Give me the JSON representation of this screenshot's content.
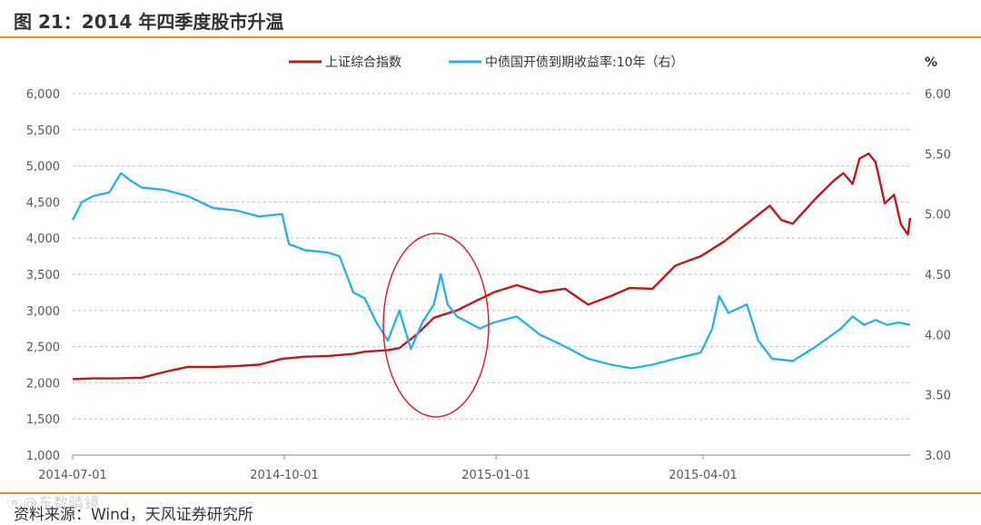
{
  "figure": {
    "title": "图 21：2014 年四季度股市升温",
    "source": "资料来源：Wind，天风证券研究所",
    "watermark": "ⓦ@东数晴镜"
  },
  "colors": {
    "accent": "#E5892E",
    "series_red": "#C0161C",
    "series_blue": "#29B3E4",
    "circle": "#D9232A",
    "grid": "#BFBFBF"
  },
  "chart_data": {
    "type": "line",
    "left_unit": "",
    "right_unit": "%",
    "x_ticks": [
      "2014-07-01",
      "2014-10-01",
      "2015-01-01",
      "2015-04-01"
    ],
    "x_range": [
      "2014-07-01",
      "2015-06-30"
    ],
    "y_left": {
      "min": 1000,
      "max": 6000,
      "ticks": [
        "1,000",
        "1,500",
        "2,000",
        "2,500",
        "3,000",
        "3,500",
        "4,000",
        "4,500",
        "5,000",
        "5,500",
        "6,000"
      ]
    },
    "y_right": {
      "min": 3.0,
      "max": 6.0,
      "ticks": [
        "3.00",
        "3.50",
        "4.00",
        "4.50",
        "5.00",
        "5.50",
        "6.00"
      ]
    },
    "grid": true,
    "legend_position": "top",
    "annotation": "circled region around 2014-11 to 2014-12",
    "series": [
      {
        "name": "上证综合指数",
        "axis": "left",
        "points": [
          [
            "2014-07-01",
            2050
          ],
          [
            "2014-07-10",
            2060
          ],
          [
            "2014-07-20",
            2060
          ],
          [
            "2014-07-31",
            2070
          ],
          [
            "2014-08-10",
            2150
          ],
          [
            "2014-08-20",
            2220
          ],
          [
            "2014-08-31",
            2220
          ],
          [
            "2014-09-10",
            2230
          ],
          [
            "2014-09-20",
            2250
          ],
          [
            "2014-09-30",
            2330
          ],
          [
            "2014-10-10",
            2360
          ],
          [
            "2014-10-20",
            2370
          ],
          [
            "2014-10-31",
            2400
          ],
          [
            "2014-11-05",
            2430
          ],
          [
            "2014-11-15",
            2450
          ],
          [
            "2014-11-20",
            2480
          ],
          [
            "2014-11-28",
            2680
          ],
          [
            "2014-12-05",
            2900
          ],
          [
            "2014-12-10",
            2950
          ],
          [
            "2014-12-15",
            3000
          ],
          [
            "2014-12-20",
            3080
          ],
          [
            "2014-12-31",
            3250
          ],
          [
            "2015-01-10",
            3350
          ],
          [
            "2015-01-20",
            3250
          ],
          [
            "2015-01-31",
            3300
          ],
          [
            "2015-02-10",
            3080
          ],
          [
            "2015-02-20",
            3200
          ],
          [
            "2015-02-28",
            3310
          ],
          [
            "2015-03-10",
            3300
          ],
          [
            "2015-03-20",
            3620
          ],
          [
            "2015-03-31",
            3750
          ],
          [
            "2015-04-10",
            3950
          ],
          [
            "2015-04-20",
            4200
          ],
          [
            "2015-04-30",
            4450
          ],
          [
            "2015-05-05",
            4250
          ],
          [
            "2015-05-10",
            4200
          ],
          [
            "2015-05-20",
            4550
          ],
          [
            "2015-05-28",
            4800
          ],
          [
            "2015-06-01",
            4900
          ],
          [
            "2015-06-05",
            4750
          ],
          [
            "2015-06-08",
            5100
          ],
          [
            "2015-06-12",
            5170
          ],
          [
            "2015-06-15",
            5050
          ],
          [
            "2015-06-19",
            4480
          ],
          [
            "2015-06-23",
            4600
          ],
          [
            "2015-06-26",
            4190
          ],
          [
            "2015-06-29",
            4050
          ],
          [
            "2015-06-30",
            4280
          ]
        ]
      },
      {
        "name": "中债国开债到期收益率:10年（右）",
        "axis": "right",
        "points": [
          [
            "2014-07-01",
            4.95
          ],
          [
            "2014-07-05",
            5.1
          ],
          [
            "2014-07-10",
            5.15
          ],
          [
            "2014-07-17",
            5.18
          ],
          [
            "2014-07-22",
            5.34
          ],
          [
            "2014-07-26",
            5.28
          ],
          [
            "2014-07-31",
            5.22
          ],
          [
            "2014-08-10",
            5.2
          ],
          [
            "2014-08-20",
            5.15
          ],
          [
            "2014-08-31",
            5.05
          ],
          [
            "2014-09-10",
            5.03
          ],
          [
            "2014-09-20",
            4.98
          ],
          [
            "2014-09-30",
            5.0
          ],
          [
            "2014-10-03",
            4.75
          ],
          [
            "2014-10-10",
            4.7
          ],
          [
            "2014-10-20",
            4.68
          ],
          [
            "2014-10-25",
            4.65
          ],
          [
            "2014-10-28",
            4.5
          ],
          [
            "2014-10-31",
            4.35
          ],
          [
            "2014-11-05",
            4.3
          ],
          [
            "2014-11-10",
            4.1
          ],
          [
            "2014-11-15",
            3.95
          ],
          [
            "2014-11-20",
            4.2
          ],
          [
            "2014-11-25",
            3.88
          ],
          [
            "2014-11-30",
            4.1
          ],
          [
            "2014-12-05",
            4.25
          ],
          [
            "2014-12-08",
            4.5
          ],
          [
            "2014-12-11",
            4.25
          ],
          [
            "2014-12-15",
            4.15
          ],
          [
            "2014-12-20",
            4.1
          ],
          [
            "2014-12-25",
            4.05
          ],
          [
            "2014-12-31",
            4.1
          ],
          [
            "2015-01-10",
            4.15
          ],
          [
            "2015-01-20",
            4.0
          ],
          [
            "2015-01-31",
            3.9
          ],
          [
            "2015-02-10",
            3.8
          ],
          [
            "2015-02-20",
            3.75
          ],
          [
            "2015-03-01",
            3.72
          ],
          [
            "2015-03-10",
            3.75
          ],
          [
            "2015-03-20",
            3.8
          ],
          [
            "2015-03-31",
            3.85
          ],
          [
            "2015-04-05",
            4.05
          ],
          [
            "2015-04-08",
            4.32
          ],
          [
            "2015-04-12",
            4.18
          ],
          [
            "2015-04-20",
            4.25
          ],
          [
            "2015-04-25",
            3.95
          ],
          [
            "2015-05-01",
            3.8
          ],
          [
            "2015-05-10",
            3.78
          ],
          [
            "2015-05-20",
            3.9
          ],
          [
            "2015-05-31",
            4.05
          ],
          [
            "2015-06-05",
            4.15
          ],
          [
            "2015-06-10",
            4.08
          ],
          [
            "2015-06-15",
            4.12
          ],
          [
            "2015-06-20",
            4.08
          ],
          [
            "2015-06-25",
            4.1
          ],
          [
            "2015-06-30",
            4.08
          ]
        ]
      }
    ]
  }
}
